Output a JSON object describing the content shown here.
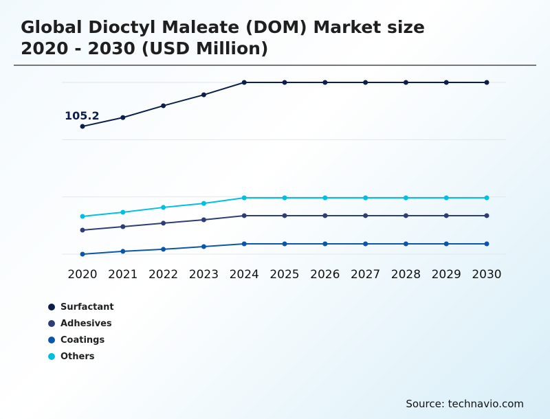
{
  "chart_data": {
    "type": "line",
    "title": "Global Dioctyl Maleate (DOM) Market size 2020 - 2030 (USD Million)",
    "categories": [
      "2020",
      "2021",
      "2022",
      "2023",
      "2024",
      "2025",
      "2026",
      "2027",
      "2028",
      "2029",
      "2030"
    ],
    "series": [
      {
        "name": "Surfactant",
        "color": "#0b1f4a",
        "values": [
          105.2,
          112.5,
          122.2,
          131.2,
          141.4,
          141.4,
          141.4,
          141.4,
          141.4,
          141.4,
          141.4
        ]
      },
      {
        "name": "Adhesives",
        "color": "#2e3d75",
        "values": [
          19.8,
          22.6,
          25.5,
          28.3,
          31.7,
          31.7,
          31.7,
          31.7,
          31.7,
          31.7,
          31.7
        ]
      },
      {
        "name": "Coatings",
        "color": "#0a56a8",
        "values": [
          0,
          2.3,
          4.0,
          6.2,
          8.5,
          8.5,
          8.5,
          8.5,
          8.5,
          8.5,
          8.5
        ]
      },
      {
        "name": "Others",
        "color": "#00bfe0",
        "values": [
          31.1,
          34.5,
          38.5,
          41.8,
          46.4,
          46.4,
          46.4,
          46.4,
          46.4,
          46.4,
          46.4
        ]
      }
    ],
    "annotations": [
      {
        "series": "Surfactant",
        "category": "2020",
        "text": "105.2"
      }
    ],
    "ylim": [
      0,
      141.4
    ],
    "grid": true,
    "y_axis_labels_shown": false,
    "legend_placement": "bottom-left"
  },
  "header": {
    "title_line1": "Global Dioctyl Maleate (DOM) Market size",
    "title_line2": "2020 - 2030 (USD Million)"
  },
  "source": "Source: technavio.com"
}
